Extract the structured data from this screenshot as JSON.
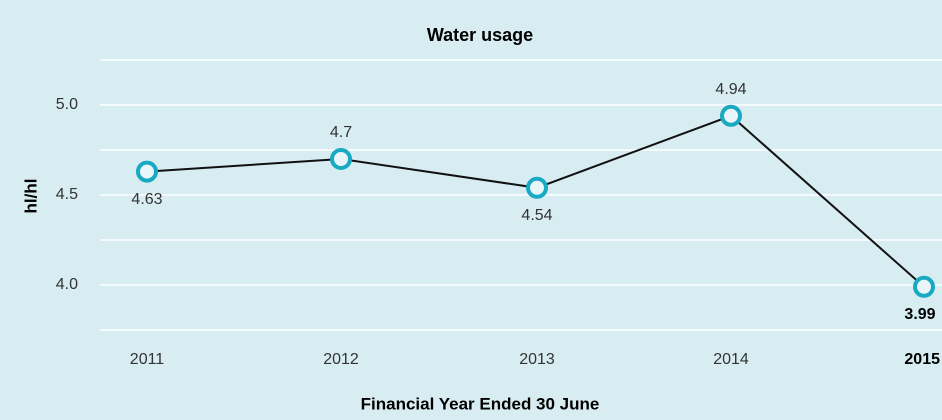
{
  "chart_data": {
    "type": "line",
    "title": "Water usage",
    "y_label": "hl/hl",
    "x_label": "Financial Year Ended 30 June",
    "categories": [
      "2011",
      "2012",
      "2013",
      "2014",
      "2015"
    ],
    "series": [
      {
        "name": "Water usage",
        "color": "#111111",
        "marker_color": "#19a9c2",
        "values": [
          4.63,
          4.7,
          4.54,
          4.94,
          3.99
        ]
      }
    ],
    "ylim": [
      3.75,
      5.25
    ],
    "yticks": [
      {
        "value": 4.0,
        "label": "4.0"
      },
      {
        "value": 4.5,
        "label": "4.5"
      },
      {
        "value": 5.0,
        "label": "5.0"
      }
    ],
    "yminorticks": [
      4.25,
      4.75
    ],
    "grid": true,
    "background": "#d7edf2"
  }
}
